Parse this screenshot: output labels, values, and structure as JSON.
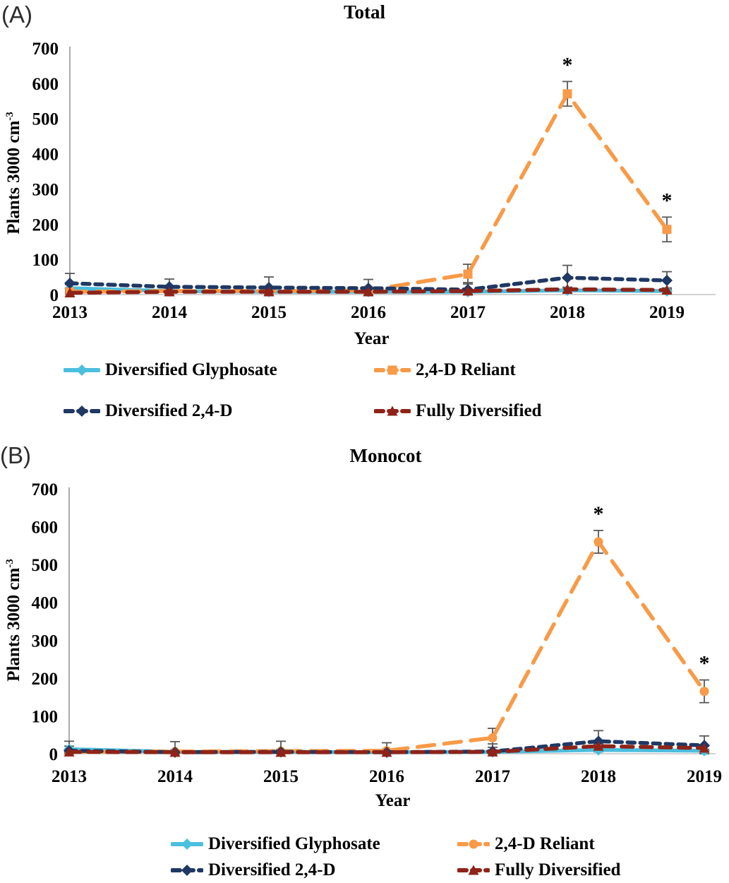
{
  "ui": {
    "panels": [
      {
        "corner_label": "(A)",
        "title": "Total",
        "xlabel": "Year",
        "ylabel_main": "Plants 3000 cm",
        "ylabel_sup": "-3"
      },
      {
        "corner_label": "(B)",
        "title": "Monocot",
        "xlabel": "Year",
        "ylabel_main": "Plants 3000 cm",
        "ylabel_sup": "-3"
      }
    ],
    "colors": {
      "diversified_glyphosate": "#4BBFDE",
      "24d_reliant": "#F89A47",
      "diversified_24d": "#1F3864",
      "fully_diversified": "#8F2318",
      "error_bar": "#595959",
      "axis_line": "#ABABAB",
      "baseline": "#C4C4C4"
    }
  },
  "chart_data": [
    {
      "type": "line",
      "panel": "A",
      "title": "Total",
      "xlabel": "Year",
      "ylabel": "Plants 3000 cm-3",
      "x": [
        "2013",
        "2014",
        "2015",
        "2016",
        "2017",
        "2018",
        "2019"
      ],
      "ylim": [
        0,
        700
      ],
      "yticks": [
        0,
        100,
        200,
        300,
        400,
        500,
        600,
        700
      ],
      "grid": false,
      "legend_position": "below",
      "series": [
        {
          "name": "Diversified Glyphosate",
          "color": "#4BBFDE",
          "line": "solid",
          "marker": "diamond",
          "values": [
            18,
            10,
            8,
            8,
            8,
            12,
            10
          ],
          "errors": [
            10,
            5,
            4,
            4,
            4,
            5,
            5
          ]
        },
        {
          "name": "2,4-D Reliant",
          "color": "#F89A47",
          "line": "long-dash",
          "marker": "square",
          "values": [
            8,
            10,
            10,
            12,
            58,
            570,
            185
          ],
          "errors": [
            5,
            5,
            5,
            5,
            28,
            35,
            35
          ]
        },
        {
          "name": "Diversified 2,4-D",
          "color": "#1F3864",
          "line": "short-dash",
          "marker": "diamond",
          "values": [
            32,
            22,
            20,
            18,
            14,
            48,
            40
          ],
          "errors": [
            28,
            22,
            30,
            25,
            20,
            35,
            25
          ]
        },
        {
          "name": "Fully Diversified",
          "color": "#8F2318",
          "line": "medium-dash",
          "marker": "triangle",
          "values": [
            5,
            8,
            8,
            8,
            10,
            15,
            13
          ],
          "errors": [
            4,
            4,
            4,
            4,
            5,
            6,
            6
          ]
        }
      ],
      "annotations": [
        {
          "symbol": "*",
          "x": "2018",
          "series": "2,4-D Reliant"
        },
        {
          "symbol": "*",
          "x": "2019",
          "series": "2,4-D Reliant"
        }
      ]
    },
    {
      "type": "line",
      "panel": "B",
      "title": "Monocot",
      "xlabel": "Year",
      "ylabel": "Plants 3000 cm-3",
      "x": [
        "2013",
        "2014",
        "2015",
        "2016",
        "2017",
        "2018",
        "2019"
      ],
      "ylim": [
        0,
        700
      ],
      "yticks": [
        0,
        100,
        200,
        300,
        400,
        500,
        600,
        700
      ],
      "grid": false,
      "legend_position": "below",
      "series": [
        {
          "name": "Diversified Glyphosate",
          "color": "#4BBFDE",
          "line": "solid",
          "marker": "diamond",
          "values": [
            12,
            5,
            5,
            4,
            5,
            10,
            8
          ],
          "errors": [
            8,
            4,
            4,
            4,
            4,
            4,
            4
          ]
        },
        {
          "name": "2,4-D Reliant",
          "color": "#F89A47",
          "line": "long-dash",
          "marker": "circle",
          "values": [
            5,
            6,
            7,
            8,
            42,
            560,
            165
          ],
          "errors": [
            4,
            4,
            4,
            4,
            25,
            30,
            30
          ]
        },
        {
          "name": "Diversified 2,4-D",
          "color": "#1F3864",
          "line": "short-dash",
          "marker": "diamond",
          "values": [
            8,
            4,
            5,
            4,
            6,
            33,
            22
          ],
          "errors": [
            25,
            28,
            28,
            25,
            20,
            28,
            25
          ]
        },
        {
          "name": "Fully Diversified",
          "color": "#8F2318",
          "line": "medium-dash",
          "marker": "triangle",
          "values": [
            5,
            4,
            4,
            4,
            5,
            20,
            15
          ],
          "errors": [
            4,
            4,
            4,
            4,
            5,
            6,
            5
          ]
        }
      ],
      "annotations": [
        {
          "symbol": "*",
          "x": "2018",
          "series": "2,4-D Reliant"
        },
        {
          "symbol": "*",
          "x": "2019",
          "series": "2,4-D Reliant"
        }
      ]
    }
  ]
}
